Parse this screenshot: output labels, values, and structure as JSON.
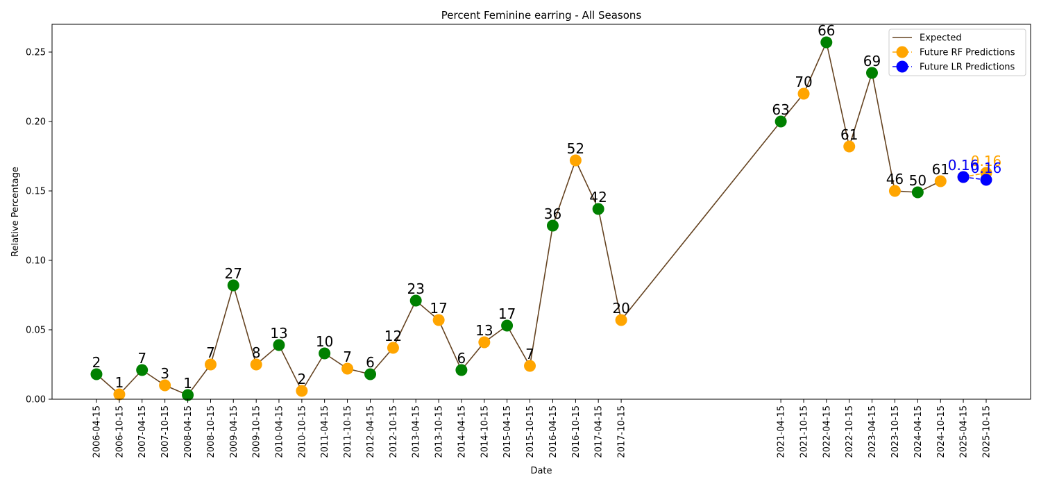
{
  "chart_data": {
    "type": "line",
    "title": "Percent Feminine earring - All Seasons",
    "xlabel": "Date",
    "ylabel": "Relative Percentage",
    "ylim": [
      0,
      0.27
    ],
    "yticks": [
      0.0,
      0.05,
      0.1,
      0.15,
      0.2,
      0.25
    ],
    "ytick_labels": [
      "0.00",
      "0.05",
      "0.10",
      "0.15",
      "0.20",
      "0.25"
    ],
    "xticks": [
      "2006-04-15",
      "2006-10-15",
      "2007-04-15",
      "2007-10-15",
      "2008-04-15",
      "2008-10-15",
      "2009-04-15",
      "2009-10-15",
      "2010-04-15",
      "2010-10-15",
      "2011-04-15",
      "2011-10-15",
      "2012-04-15",
      "2012-10-15",
      "2013-04-15",
      "2013-10-15",
      "2014-04-15",
      "2014-10-15",
      "2015-04-15",
      "2015-10-15",
      "2016-04-15",
      "2016-10-15",
      "2017-04-15",
      "2017-10-15",
      "2021-04-15",
      "2021-10-15",
      "2022-04-15",
      "2022-10-15",
      "2023-04-15",
      "2023-10-15",
      "2024-04-15",
      "2024-10-15",
      "2025-04-15",
      "2025-10-15"
    ],
    "legend_position": "top-right",
    "legend": [
      {
        "label": "Expected",
        "kind": "line",
        "color": "#654321"
      },
      {
        "label": "Future RF Predictions",
        "kind": "marker",
        "color": "#FFA500"
      },
      {
        "label": "Future LR Predictions",
        "kind": "marker",
        "color": "#0000FF"
      }
    ],
    "colors": {
      "line": "#654321",
      "spring": "#008000",
      "fall": "#FFA500",
      "lr": "#0000FF",
      "rf": "#FFA500"
    },
    "series": [
      {
        "name": "Expected",
        "points": [
          {
            "x": "2006-04-15",
            "y": 0.018,
            "label": "2",
            "color": "#008000"
          },
          {
            "x": "2006-10-15",
            "y": 0.0035,
            "label": "1",
            "color": "#FFA500"
          },
          {
            "x": "2007-04-15",
            "y": 0.021,
            "label": "7",
            "color": "#008000"
          },
          {
            "x": "2007-10-15",
            "y": 0.01,
            "label": "3",
            "color": "#FFA500"
          },
          {
            "x": "2008-04-15",
            "y": 0.003,
            "label": "1",
            "color": "#008000"
          },
          {
            "x": "2008-10-15",
            "y": 0.025,
            "label": "7",
            "color": "#FFA500"
          },
          {
            "x": "2009-04-15",
            "y": 0.082,
            "label": "27",
            "color": "#008000"
          },
          {
            "x": "2009-10-15",
            "y": 0.025,
            "label": "8",
            "color": "#FFA500"
          },
          {
            "x": "2010-04-15",
            "y": 0.039,
            "label": "13",
            "color": "#008000"
          },
          {
            "x": "2010-10-15",
            "y": 0.006,
            "label": "2",
            "color": "#FFA500"
          },
          {
            "x": "2011-04-15",
            "y": 0.033,
            "label": "10",
            "color": "#008000"
          },
          {
            "x": "2011-10-15",
            "y": 0.022,
            "label": "7",
            "color": "#FFA500"
          },
          {
            "x": "2012-04-15",
            "y": 0.018,
            "label": "6",
            "color": "#008000"
          },
          {
            "x": "2012-10-15",
            "y": 0.037,
            "label": "12",
            "color": "#FFA500"
          },
          {
            "x": "2013-04-15",
            "y": 0.071,
            "label": "23",
            "color": "#008000"
          },
          {
            "x": "2013-10-15",
            "y": 0.057,
            "label": "17",
            "color": "#FFA500"
          },
          {
            "x": "2014-04-15",
            "y": 0.021,
            "label": "6",
            "color": "#008000"
          },
          {
            "x": "2014-10-15",
            "y": 0.041,
            "label": "13",
            "color": "#FFA500"
          },
          {
            "x": "2015-04-15",
            "y": 0.053,
            "label": "17",
            "color": "#008000"
          },
          {
            "x": "2015-10-15",
            "y": 0.024,
            "label": "7",
            "color": "#FFA500"
          },
          {
            "x": "2016-04-15",
            "y": 0.125,
            "label": "36",
            "color": "#008000"
          },
          {
            "x": "2016-10-15",
            "y": 0.172,
            "label": "52",
            "color": "#FFA500"
          },
          {
            "x": "2017-04-15",
            "y": 0.137,
            "label": "42",
            "color": "#008000"
          },
          {
            "x": "2017-10-15",
            "y": 0.057,
            "label": "20",
            "color": "#FFA500"
          },
          {
            "x": "2021-04-15",
            "y": 0.2,
            "label": "63",
            "color": "#008000"
          },
          {
            "x": "2021-10-15",
            "y": 0.22,
            "label": "70",
            "color": "#FFA500"
          },
          {
            "x": "2022-04-15",
            "y": 0.257,
            "label": "66",
            "color": "#008000"
          },
          {
            "x": "2022-10-15",
            "y": 0.182,
            "label": "61",
            "color": "#FFA500"
          },
          {
            "x": "2023-04-15",
            "y": 0.235,
            "label": "69",
            "color": "#008000"
          },
          {
            "x": "2023-10-15",
            "y": 0.15,
            "label": "46",
            "color": "#FFA500"
          },
          {
            "x": "2024-04-15",
            "y": 0.149,
            "label": "50",
            "color": "#008000"
          },
          {
            "x": "2024-10-15",
            "y": 0.157,
            "label": "61",
            "color": "#FFA500"
          }
        ]
      },
      {
        "name": "Future RF Predictions",
        "points": [
          {
            "x": "2025-04-15",
            "y": 0.16,
            "label": "0.16"
          },
          {
            "x": "2025-10-15",
            "y": 0.163,
            "label": "0.16"
          }
        ]
      },
      {
        "name": "Future LR Predictions",
        "points": [
          {
            "x": "2025-04-15",
            "y": 0.16,
            "label": "0.16"
          },
          {
            "x": "2025-10-15",
            "y": 0.158,
            "label": "0.16"
          }
        ]
      }
    ]
  }
}
